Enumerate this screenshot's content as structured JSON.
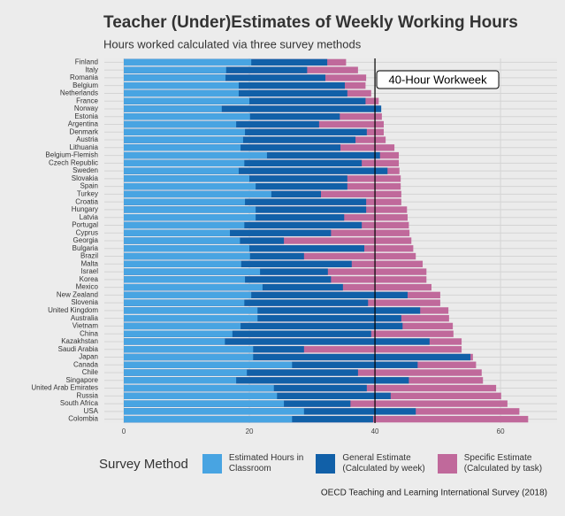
{
  "chart_data": {
    "type": "overlapping-bar",
    "title": "Teacher (Under)Estimates of Weekly Working Hours",
    "subtitle": "Hours worked calculated via three survey methods",
    "caption": "OECD Teaching and Learning International Survey (2018)",
    "legend_title": "Survey Method",
    "legend_position": "bottom",
    "grid": true,
    "xlim": [
      -3.1,
      69
    ],
    "xticks": [
      0,
      20,
      40,
      60
    ],
    "reference_line": {
      "value": 40,
      "label": "40-Hour Workweek"
    },
    "categories": [
      "Finland",
      "Italy",
      "Romania",
      "Belgium",
      "Netherlands",
      "France",
      "Norway",
      "Estonia",
      "Argentina",
      "Denmark",
      "Austria",
      "Lithuania",
      "Belgium-Flemish",
      "Czech Republic",
      "Sweden",
      "Slovakia",
      "Spain",
      "Turkey",
      "Croatia",
      "Hungary",
      "Latvia",
      "Portugal",
      "Cyprus",
      "Georgia",
      "Bulgaria",
      "Brazil",
      "Malta",
      "Israel",
      "Korea",
      "Mexico",
      "New Zealand",
      "Slovenia",
      "United Kingdom",
      "Australia",
      "Vietnam",
      "China",
      "Kazakhstan",
      "Saudi Arabia",
      "Japan",
      "Canada",
      "Chile",
      "Singapore",
      "United Arab Emirates",
      "Russia",
      "South Africa",
      "USA",
      "Colombia"
    ],
    "series": [
      {
        "name": "Specific Estimate\n(Calculated by task)",
        "color": "#c0699b",
        "values": [
          35.4,
          37.3,
          38.6,
          38.5,
          39.4,
          40.6,
          40.8,
          41.1,
          41.4,
          41.4,
          41.7,
          43.1,
          43.8,
          43.8,
          43.9,
          44.1,
          44.1,
          44.2,
          44.2,
          45.1,
          45.2,
          45.4,
          45.5,
          45.8,
          46.1,
          46.5,
          47.6,
          48.2,
          48.2,
          49,
          50.4,
          50.4,
          51.7,
          51.8,
          52.4,
          52.5,
          53.8,
          53.8,
          55.6,
          56.1,
          57,
          57.2,
          59.3,
          60.1,
          61.1,
          63,
          64.4
        ]
      },
      {
        "name": "General Estimate\n(Calculated by week)",
        "color": "#1160a8",
        "values": [
          32.4,
          29.2,
          32.1,
          35.2,
          35.6,
          38.5,
          41,
          34.4,
          31.1,
          38.7,
          36.9,
          34.5,
          40.8,
          37.9,
          42,
          35.6,
          35.6,
          31.4,
          38.6,
          38.6,
          35.1,
          37.9,
          33,
          25.5,
          38.3,
          28.7,
          36.3,
          32.5,
          33,
          34.9,
          45.2,
          38.9,
          47.2,
          44.2,
          44.4,
          39.4,
          48.7,
          28.7,
          55.2,
          46.8,
          37.3,
          45.4,
          38.7,
          42.5,
          36.1,
          46.5,
          39.7
        ]
      },
      {
        "name": "Estimated Hours in\nClassroom",
        "color": "#48a4e2",
        "values": [
          20.3,
          16.3,
          16.2,
          18.3,
          18.3,
          20,
          15.6,
          20.1,
          17.9,
          19.3,
          19,
          18.6,
          22.8,
          19.2,
          18.3,
          20,
          21,
          23.5,
          19.3,
          21,
          21,
          19.2,
          16.9,
          18.5,
          20,
          20.1,
          18.7,
          21.7,
          19.3,
          22.1,
          20.3,
          19.2,
          21.3,
          21.3,
          18.6,
          17.3,
          16.1,
          20.6,
          20.6,
          26.8,
          19.6,
          17.9,
          23.9,
          24.4,
          25.5,
          28.7,
          26.8
        ]
      }
    ]
  }
}
